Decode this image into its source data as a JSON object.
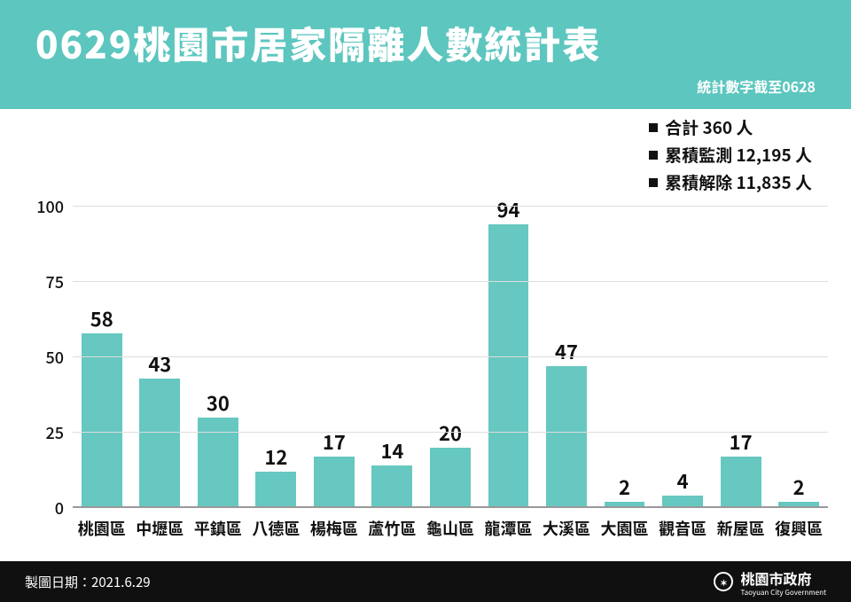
{
  "header": {
    "title": "0629桃園市居家隔離人數統計表",
    "subtitle": "統計數字截至0628",
    "bg_color": "#5cc6bf",
    "text_color": "#ffffff"
  },
  "legend": {
    "items": [
      "合計 360 人",
      "累積監測 12,195 人",
      "累積解除 11,835 人"
    ],
    "bullet_color": "#111111"
  },
  "chart": {
    "type": "bar",
    "categories": [
      "桃園區",
      "中壢區",
      "平鎮區",
      "八德區",
      "楊梅區",
      "蘆竹區",
      "龜山區",
      "龍潭區",
      "大溪區",
      "大園區",
      "觀音區",
      "新屋區",
      "復興區"
    ],
    "values": [
      58,
      43,
      30,
      12,
      17,
      14,
      20,
      94,
      47,
      2,
      4,
      17,
      2
    ],
    "bar_color": "#66c8c0",
    "y_max": 115,
    "y_ticks": [
      0,
      25,
      50,
      75,
      100
    ],
    "value_fontsize": 22,
    "category_fontsize": 18,
    "tick_fontsize": 18,
    "grid_color": "#dddddd",
    "axis_color": "#999999",
    "background_color": "#ffffff",
    "bar_width_ratio": 0.7
  },
  "footer": {
    "date_label": "製圖日期：2021.6.29",
    "org_name": "桃園市政府",
    "org_sub": "Taoyuan City Government",
    "bg_color": "#101010",
    "text_color": "#ffffff"
  }
}
